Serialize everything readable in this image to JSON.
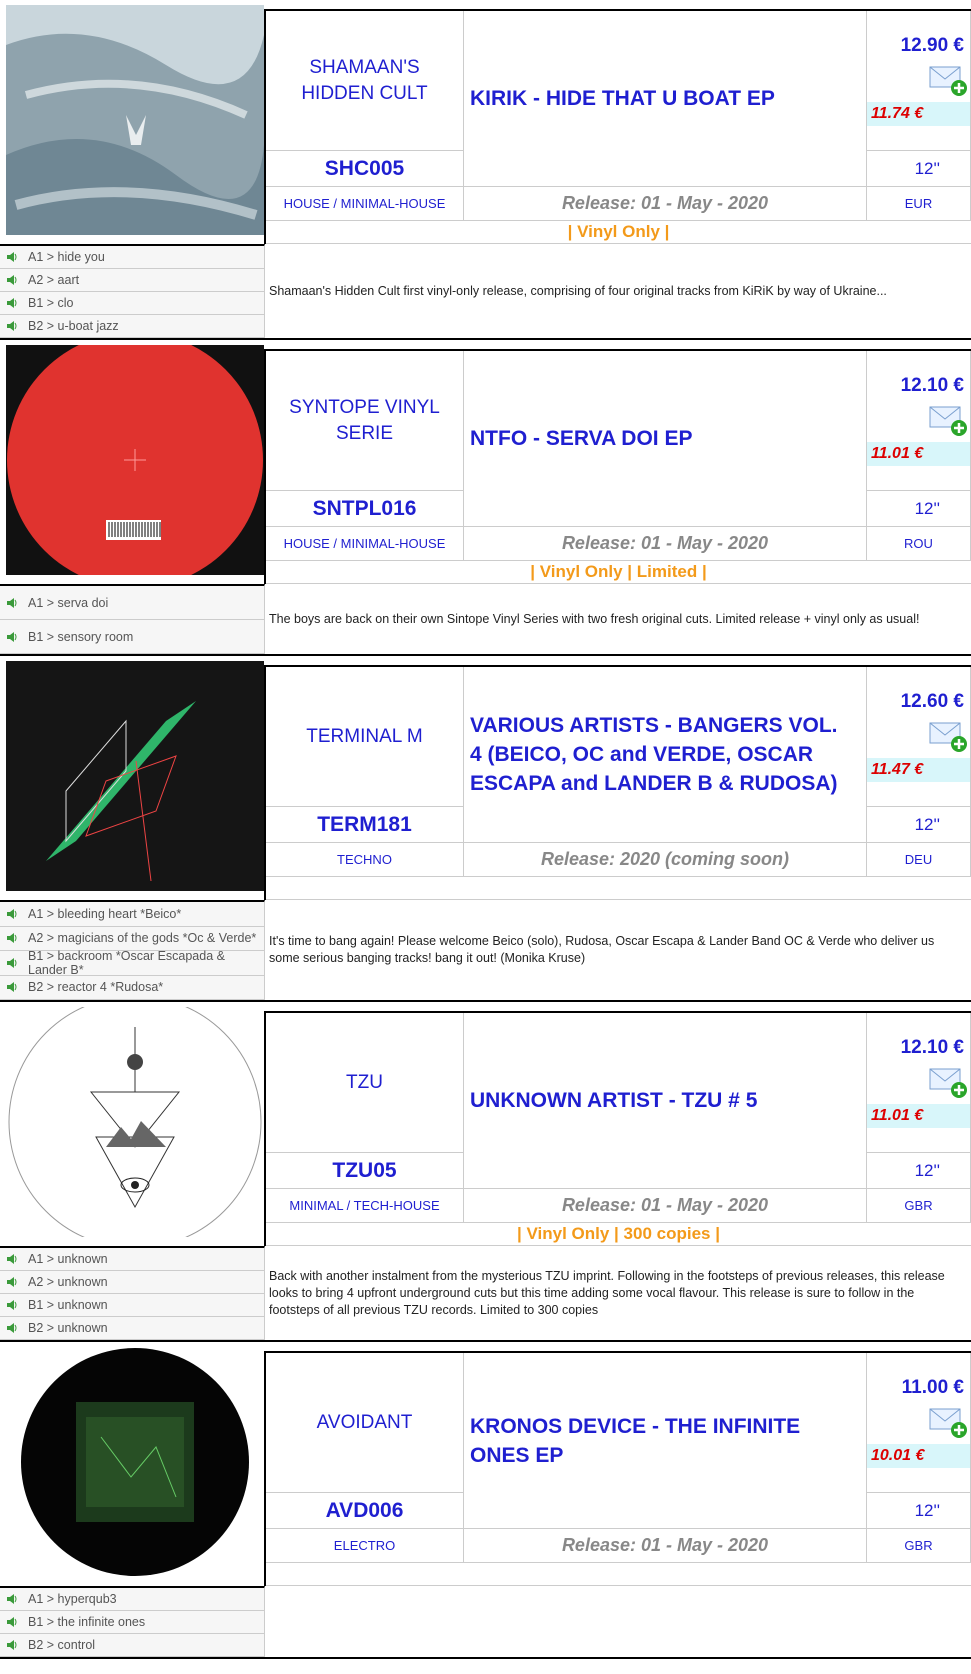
{
  "records": [
    {
      "label": "SHAMAAN'S HIDDEN CULT",
      "title": "KIRIK - HIDE THAT U BOAT EP",
      "catalog": "SHC005",
      "genre": "HOUSE / MINIMAL-HOUSE",
      "release": "Release: 01 - May - 2020",
      "price": "12.90 €",
      "discount_price": "11.74 €",
      "format": "12''",
      "country": "EUR",
      "availability": "| Vinyl Only |",
      "tracks": [
        "A1 > hide you",
        "A2 > aart",
        "B1 > clo",
        "B2 > u-boat jazz"
      ],
      "description": "Shamaan's Hidden Cult first vinyl-only release, comprising of four original tracks from KiRiK by way of Ukraine..."
    },
    {
      "label": "SYNTOPE VINYL SERIE",
      "title": "NTFO - SERVA DOI EP",
      "catalog": "SNTPL016",
      "genre": "HOUSE / MINIMAL-HOUSE",
      "release": "Release: 01 - May - 2020",
      "price": "12.10 €",
      "discount_price": "11.01 €",
      "format": "12''",
      "country": "ROU",
      "availability": "| Vinyl Only | Limited |",
      "tracks": [
        "A1 > serva doi",
        "B1 > sensory room"
      ],
      "description": "The boys are back on their own Sintope Vinyl Series with two fresh original cuts. Limited release + vinyl only as usual!"
    },
    {
      "label": "TERMINAL M",
      "title": "VARIOUS ARTISTS - BANGERS VOL. 4 (BEICO, OC and VERDE, OSCAR ESCAPA and LANDER B & RUDOSA)",
      "catalog": "TERM181",
      "genre": "TECHNO",
      "release": "Release: 2020 (coming soon)",
      "price": "12.60 €",
      "discount_price": "11.47 €",
      "format": "12''",
      "country": "DEU",
      "availability": null,
      "tracks": [
        "A1 > bleeding heart *Beico*",
        "A2 > magicians of the gods *Oc & Verde*",
        "B1 > backroom *Oscar Escapada & Lander B*",
        "B2 > reactor 4 *Rudosa*"
      ],
      "description": "It's time to bang again! Please welcome Beico (solo), Rudosa, Oscar Escapa & Lander Band OC & Verde who deliver us some serious banging tracks! bang it out! (Monika Kruse)"
    },
    {
      "label": "TZU",
      "title": "UNKNOWN ARTIST - TZU # 5",
      "catalog": "TZU05",
      "genre": "MINIMAL / TECH-HOUSE",
      "release": "Release: 01 - May - 2020",
      "price": "12.10 €",
      "discount_price": "11.01 €",
      "format": "12''",
      "country": "GBR",
      "availability": "| Vinyl Only | 300 copies |",
      "tracks": [
        "A1 > unknown",
        "A2 > unknown",
        "B1 > unknown",
        "B2 > unknown"
      ],
      "description": "Back with another instalment from the mysterious TZU imprint. Following in the footsteps of previous releases, this release looks to bring 4 upfront underground cuts but this time adding some vocal flavour. This release is sure to follow in the footsteps of all previous TZU records. Limited to 300 copies"
    },
    {
      "label": "AVOIDANT",
      "title": "KRONOS DEVICE - THE INFINITE ONES EP",
      "catalog": "AVD006",
      "genre": "ELECTRO",
      "release": "Release: 01 - May - 2020",
      "price": "11.00 €",
      "discount_price": "10.01 €",
      "format": "12''",
      "country": "GBR",
      "availability": null,
      "tracks": [
        "A1 > hyperqub3",
        "B1 > the infinite ones",
        "B2 > control"
      ],
      "description": null
    }
  ]
}
